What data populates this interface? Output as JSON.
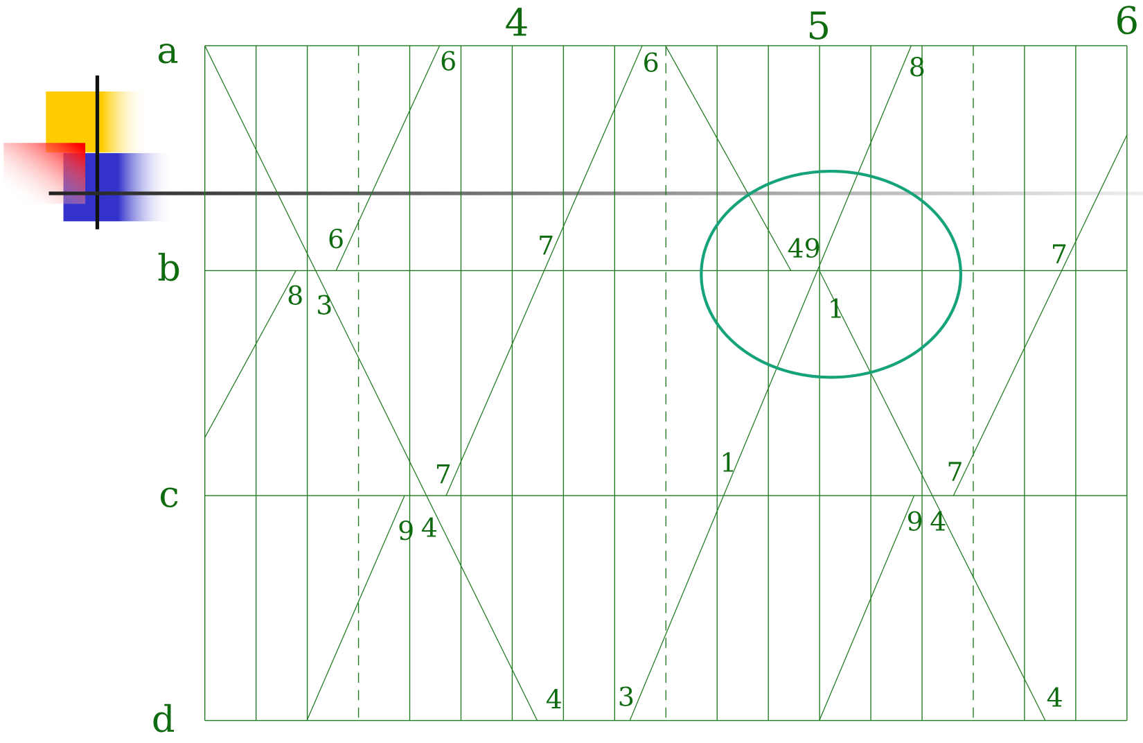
{
  "row_labels": [
    "a",
    "b",
    "c",
    "d"
  ],
  "column_labels": [
    "4",
    "5",
    "6"
  ],
  "line_labels": [
    "6",
    "6",
    "8",
    "6",
    "7",
    "49",
    "7",
    "8",
    "3",
    "1",
    "1",
    "7",
    "7",
    "9",
    "4",
    "9",
    "4",
    "4",
    "3",
    "4"
  ]
}
